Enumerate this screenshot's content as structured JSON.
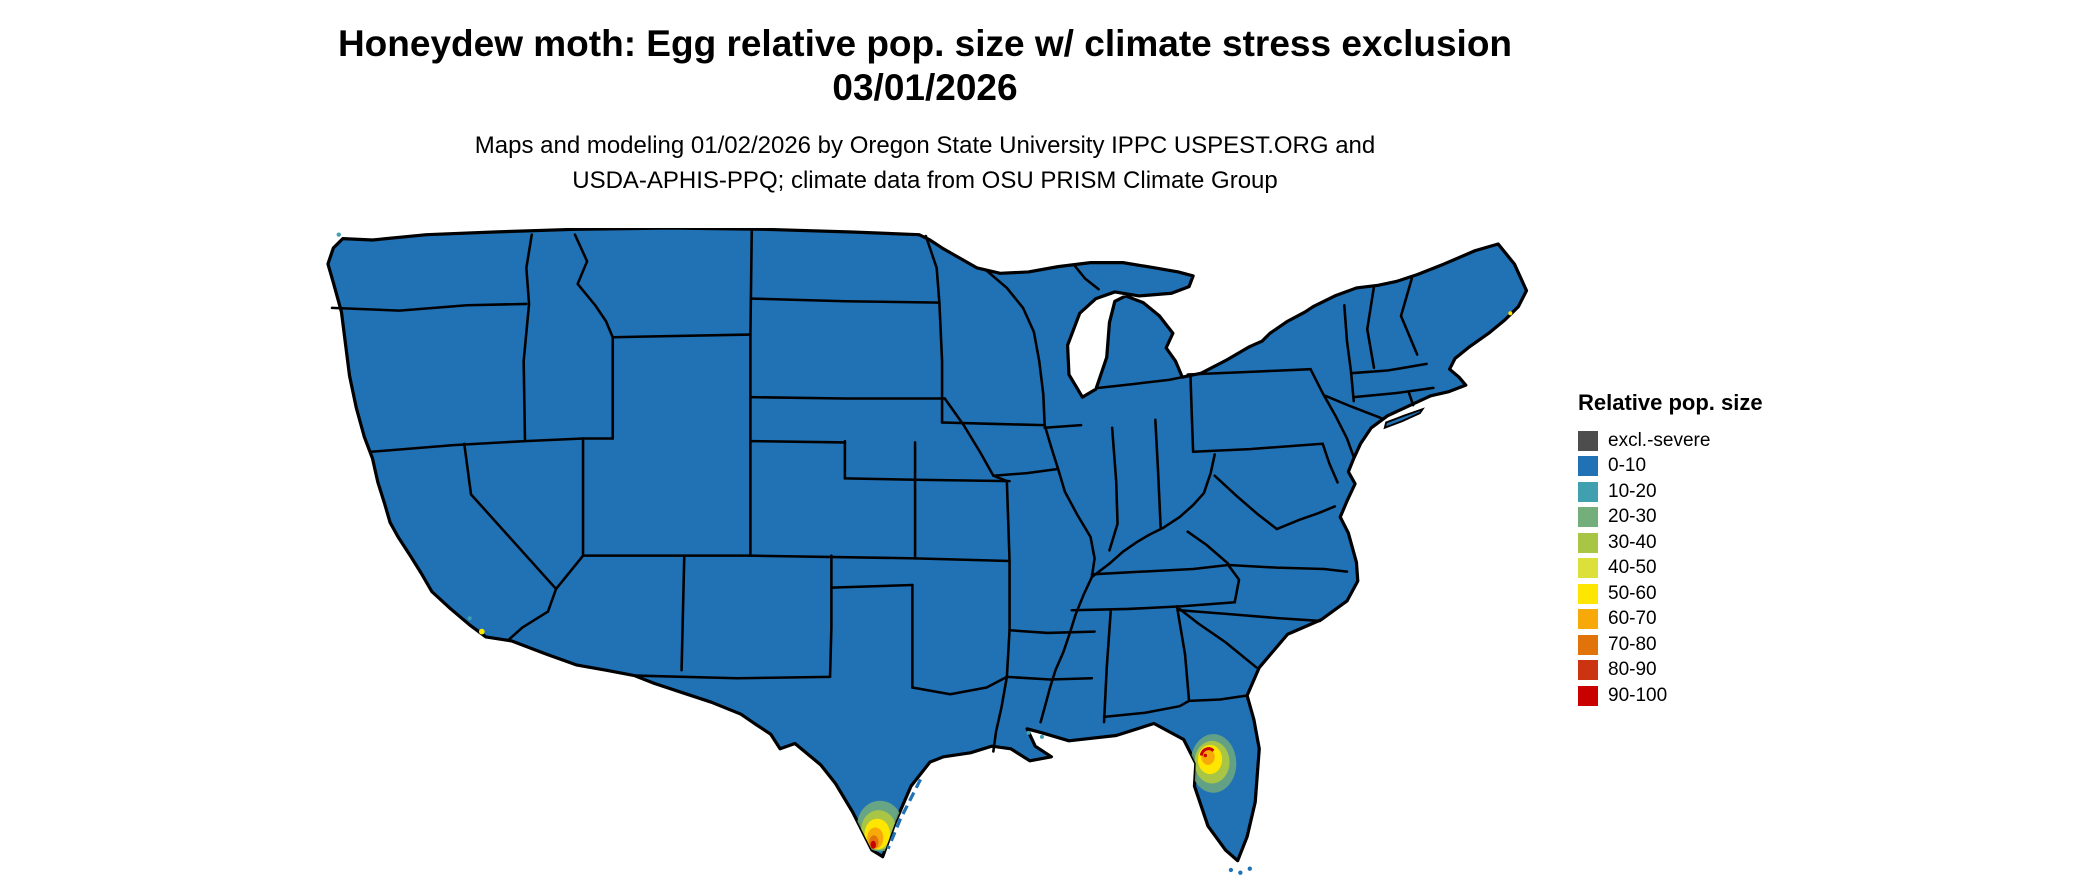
{
  "header": {
    "title_line1": "Honeydew moth: Egg relative pop. size w/ climate stress exclusion",
    "title_line2": "03/01/2026",
    "subtitle_line1": "Maps and modeling 01/02/2026 by Oregon State University IPPC USPEST.ORG and",
    "subtitle_line2": "USDA-APHIS-PPQ; climate data from OSU PRISM Climate Group"
  },
  "legend": {
    "title": "Relative pop. size",
    "items": [
      {
        "label": "excl.-severe",
        "color": "#4d4d4d"
      },
      {
        "label": "0-10",
        "color": "#2171b5"
      },
      {
        "label": "10-20",
        "color": "#40a0b0"
      },
      {
        "label": "20-30",
        "color": "#74ae7b"
      },
      {
        "label": "30-40",
        "color": "#a8c545"
      },
      {
        "label": "40-50",
        "color": "#dce03a"
      },
      {
        "label": "50-60",
        "color": "#ffe600"
      },
      {
        "label": "60-70",
        "color": "#f7a90a"
      },
      {
        "label": "70-80",
        "color": "#e0740b"
      },
      {
        "label": "80-90",
        "color": "#cc3311"
      },
      {
        "label": "90-100",
        "color": "#c80000"
      }
    ]
  },
  "map": {
    "region": "continental United States",
    "land_fill": "#2171b5",
    "border_color": "#000000",
    "water_background": "#ffffff",
    "hotspots": [
      {
        "id": "south-texas",
        "peak_class": "90-100"
      },
      {
        "id": "central-florida",
        "peak_class": "90-100"
      }
    ]
  }
}
